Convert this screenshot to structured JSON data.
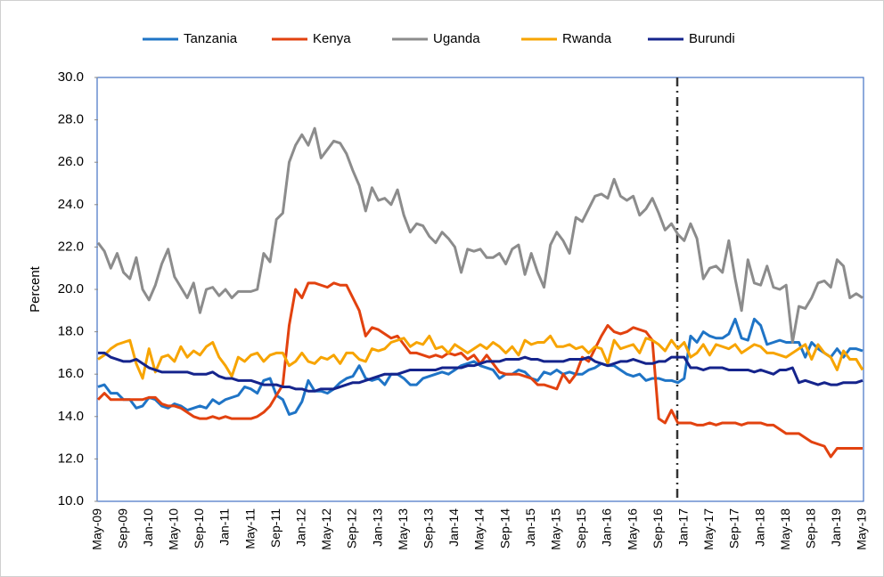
{
  "chart_data": {
    "type": "line",
    "y_axis_label": "Percent",
    "categories": [
      "May-09",
      null,
      null,
      null,
      "Sep-09",
      null,
      null,
      null,
      "Jan-10",
      null,
      null,
      null,
      "May-10",
      null,
      null,
      null,
      "Sep-10",
      null,
      null,
      null,
      "Jan-11",
      null,
      null,
      null,
      "May-11",
      null,
      null,
      null,
      "Sep-11",
      null,
      null,
      null,
      "Jan-12",
      null,
      null,
      null,
      "May-12",
      null,
      null,
      null,
      "Sep-12",
      null,
      null,
      null,
      "Jan-13",
      null,
      null,
      null,
      "May-13",
      null,
      null,
      null,
      "Sep-13",
      null,
      null,
      null,
      "Jan-14",
      null,
      null,
      null,
      "May-14",
      null,
      null,
      null,
      "Sep-14",
      null,
      null,
      null,
      "Jan-15",
      null,
      null,
      null,
      "May-15",
      null,
      null,
      null,
      "Sep-15",
      null,
      null,
      null,
      "Jan-16",
      null,
      null,
      null,
      "May-16",
      null,
      null,
      null,
      "Sep-16",
      null,
      null,
      null,
      "Jan-17",
      null,
      null,
      null,
      "May-17",
      null,
      null,
      null,
      "Sep-17",
      null,
      null,
      null,
      "Jan-18",
      null,
      null,
      null,
      "May-18",
      null,
      null,
      null,
      "Sep-18",
      null,
      null,
      null,
      "Jan-19",
      null,
      null,
      null,
      "May-19"
    ],
    "series": [
      {
        "name": "Tanzania",
        "color": "#1f74c6",
        "values": [
          15.4,
          15.5,
          15.1,
          15.1,
          14.8,
          14.8,
          14.4,
          14.5,
          14.9,
          14.8,
          14.5,
          14.4,
          14.6,
          14.5,
          14.3,
          14.4,
          14.5,
          14.4,
          14.8,
          14.6,
          14.8,
          14.9,
          15.0,
          15.4,
          15.3,
          15.1,
          15.7,
          15.8,
          15.0,
          14.8,
          14.1,
          14.2,
          14.7,
          15.7,
          15.2,
          15.2,
          15.1,
          15.3,
          15.6,
          15.8,
          15.9,
          16.4,
          15.8,
          15.7,
          15.8,
          15.5,
          16.0,
          16.0,
          15.8,
          15.5,
          15.5,
          15.8,
          15.9,
          16.0,
          16.1,
          16.0,
          16.2,
          16.4,
          16.5,
          16.6,
          16.4,
          16.3,
          16.2,
          15.8,
          16.0,
          16.0,
          16.2,
          16.1,
          15.8,
          15.7,
          16.1,
          16.0,
          16.2,
          16.0,
          16.1,
          16.0,
          16.0,
          16.2,
          16.3,
          16.5,
          16.4,
          16.4,
          16.2,
          16.0,
          15.9,
          16.0,
          15.7,
          15.8,
          15.8,
          15.7,
          15.7,
          15.6,
          15.8,
          17.8,
          17.5,
          18.0,
          17.8,
          17.7,
          17.7,
          17.9,
          18.6,
          17.7,
          17.6,
          18.6,
          18.3,
          17.4,
          17.5,
          17.6,
          17.5,
          17.5,
          17.5,
          16.8,
          17.5,
          17.2,
          17.0,
          16.8,
          17.2,
          16.8,
          17.2,
          17.2,
          17.1
        ]
      },
      {
        "name": "Kenya",
        "color": "#e2420f",
        "values": [
          14.8,
          15.1,
          14.8,
          14.8,
          14.8,
          14.8,
          14.8,
          14.8,
          14.9,
          14.9,
          14.6,
          14.5,
          14.5,
          14.4,
          14.2,
          14.0,
          13.9,
          13.9,
          14.0,
          13.9,
          14.0,
          13.9,
          13.9,
          13.9,
          13.9,
          14.0,
          14.2,
          14.5,
          15.0,
          15.5,
          18.3,
          20.0,
          19.6,
          20.3,
          20.3,
          20.2,
          20.1,
          20.3,
          20.2,
          20.2,
          19.6,
          19.0,
          17.8,
          18.2,
          18.1,
          17.9,
          17.7,
          17.8,
          17.4,
          17.0,
          17.0,
          16.9,
          16.8,
          16.9,
          16.8,
          17.0,
          16.9,
          17.0,
          16.7,
          16.9,
          16.5,
          16.9,
          16.5,
          16.1,
          16.0,
          16.0,
          16.0,
          15.9,
          15.8,
          15.5,
          15.5,
          15.4,
          15.3,
          16.0,
          15.6,
          16.0,
          16.8,
          16.6,
          17.2,
          17.8,
          18.3,
          18.0,
          17.9,
          18.0,
          18.2,
          18.1,
          18.0,
          17.6,
          13.9,
          13.7,
          14.3,
          13.7,
          13.7,
          13.7,
          13.6,
          13.6,
          13.7,
          13.6,
          13.7,
          13.7,
          13.7,
          13.6,
          13.7,
          13.7,
          13.7,
          13.6,
          13.6,
          13.4,
          13.2,
          13.2,
          13.2,
          13.0,
          12.8,
          12.7,
          12.6,
          12.1,
          12.5,
          12.5,
          12.5,
          12.5,
          12.5
        ]
      },
      {
        "name": "Uganda",
        "color": "#8c8c8c",
        "values": [
          22.2,
          21.8,
          21.0,
          21.7,
          20.8,
          20.5,
          21.5,
          20.0,
          19.5,
          20.2,
          21.2,
          21.9,
          20.6,
          20.1,
          19.6,
          20.3,
          18.9,
          20.0,
          20.1,
          19.7,
          20.0,
          19.6,
          19.9,
          19.9,
          19.9,
          20.0,
          21.7,
          21.3,
          23.3,
          23.6,
          26.0,
          26.8,
          27.3,
          26.8,
          27.6,
          26.2,
          26.6,
          27.0,
          26.9,
          26.4,
          25.6,
          24.9,
          23.7,
          24.8,
          24.2,
          24.3,
          24.0,
          24.7,
          23.5,
          22.7,
          23.1,
          23.0,
          22.5,
          22.2,
          22.7,
          22.4,
          22.0,
          20.8,
          21.9,
          21.8,
          21.9,
          21.5,
          21.5,
          21.7,
          21.2,
          21.9,
          22.1,
          20.7,
          21.7,
          20.8,
          20.1,
          22.1,
          22.7,
          22.3,
          21.7,
          23.4,
          23.2,
          23.8,
          24.4,
          24.5,
          24.3,
          25.2,
          24.4,
          24.2,
          24.4,
          23.5,
          23.8,
          24.3,
          23.6,
          22.8,
          23.1,
          22.6,
          22.3,
          23.1,
          22.4,
          20.5,
          21.0,
          21.1,
          20.8,
          22.3,
          20.5,
          19.0,
          21.4,
          20.3,
          20.2,
          21.1,
          20.1,
          20.0,
          20.2,
          17.5,
          19.2,
          19.1,
          19.6,
          20.3,
          20.4,
          20.1,
          21.4,
          21.1,
          19.6,
          19.8,
          19.6
        ]
      },
      {
        "name": "Rwanda",
        "color": "#f7a400",
        "values": [
          16.7,
          16.9,
          17.2,
          17.4,
          17.5,
          17.6,
          16.5,
          15.8,
          17.2,
          16.1,
          16.8,
          16.9,
          16.6,
          17.3,
          16.8,
          17.1,
          16.9,
          17.3,
          17.5,
          16.8,
          16.4,
          15.9,
          16.8,
          16.6,
          16.9,
          17.0,
          16.6,
          16.9,
          17.0,
          17.0,
          16.4,
          16.6,
          17.0,
          16.6,
          16.5,
          16.8,
          16.7,
          16.9,
          16.5,
          17.0,
          17.0,
          16.7,
          16.6,
          17.2,
          17.1,
          17.2,
          17.5,
          17.6,
          17.7,
          17.3,
          17.5,
          17.4,
          17.8,
          17.2,
          17.3,
          17.0,
          17.4,
          17.2,
          17.0,
          17.2,
          17.4,
          17.2,
          17.5,
          17.3,
          17.0,
          17.3,
          16.9,
          17.6,
          17.4,
          17.5,
          17.5,
          17.8,
          17.3,
          17.3,
          17.4,
          17.2,
          17.3,
          17.0,
          17.3,
          17.2,
          16.5,
          17.6,
          17.2,
          17.3,
          17.4,
          17.0,
          17.7,
          17.6,
          17.4,
          17.1,
          17.6,
          17.2,
          17.5,
          16.8,
          17.0,
          17.4,
          16.9,
          17.4,
          17.3,
          17.2,
          17.4,
          17.0,
          17.2,
          17.4,
          17.3,
          17.0,
          17.0,
          16.9,
          16.8,
          17.0,
          17.2,
          17.4,
          16.7,
          17.4,
          17.0,
          16.8,
          16.2,
          17.1,
          16.7,
          16.7,
          16.2
        ]
      },
      {
        "name": "Burundi",
        "color": "#15248c",
        "values": [
          17.0,
          17.0,
          16.8,
          16.7,
          16.6,
          16.6,
          16.7,
          16.5,
          16.3,
          16.2,
          16.1,
          16.1,
          16.1,
          16.1,
          16.1,
          16.0,
          16.0,
          16.0,
          16.1,
          15.9,
          15.8,
          15.8,
          15.7,
          15.7,
          15.7,
          15.6,
          15.5,
          15.5,
          15.5,
          15.4,
          15.4,
          15.3,
          15.3,
          15.2,
          15.2,
          15.3,
          15.3,
          15.3,
          15.4,
          15.5,
          15.6,
          15.6,
          15.7,
          15.8,
          15.9,
          16.0,
          16.0,
          16.0,
          16.1,
          16.2,
          16.2,
          16.2,
          16.2,
          16.2,
          16.3,
          16.3,
          16.3,
          16.3,
          16.4,
          16.4,
          16.5,
          16.6,
          16.6,
          16.6,
          16.7,
          16.7,
          16.7,
          16.8,
          16.7,
          16.7,
          16.6,
          16.6,
          16.6,
          16.6,
          16.7,
          16.7,
          16.7,
          16.8,
          16.6,
          16.5,
          16.4,
          16.5,
          16.6,
          16.6,
          16.7,
          16.6,
          16.5,
          16.5,
          16.6,
          16.6,
          16.8,
          16.8,
          16.8,
          16.3,
          16.3,
          16.2,
          16.3,
          16.3,
          16.3,
          16.2,
          16.2,
          16.2,
          16.2,
          16.1,
          16.2,
          16.1,
          16.0,
          16.2,
          16.2,
          16.3,
          15.6,
          15.7,
          15.6,
          15.5,
          15.6,
          15.5,
          15.5,
          15.6,
          15.6,
          15.6,
          15.7
        ]
      }
    ],
    "ylim": [
      10,
      30
    ],
    "yticks": [
      {
        "value": 10,
        "label": "10.0"
      },
      {
        "value": 12,
        "label": "12.0"
      },
      {
        "value": 14,
        "label": "14.0"
      },
      {
        "value": 16,
        "label": "16.0"
      },
      {
        "value": 18,
        "label": "18.0"
      },
      {
        "value": 20,
        "label": "20.0"
      },
      {
        "value": 22,
        "label": "22.0"
      },
      {
        "value": 24,
        "label": "24.0"
      },
      {
        "value": 26,
        "label": "26.0"
      },
      {
        "value": 28,
        "label": "28.0"
      },
      {
        "value": 30,
        "label": "30.0"
      }
    ],
    "grid": false,
    "legend": "top"
  }
}
